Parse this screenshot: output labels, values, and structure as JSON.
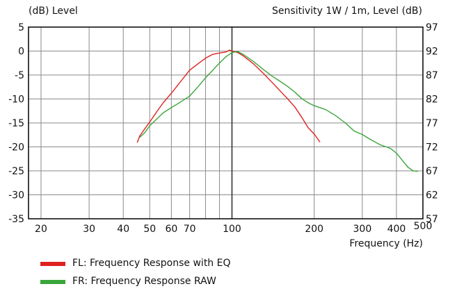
{
  "chart_data": {
    "type": "line",
    "title_left": "(dB)  Level",
    "title_right": "Sensitivity 1W / 1m, Level  (dB)",
    "xlabel": "Frequency  (Hz)",
    "x_scale": "log",
    "xlim": [
      18,
      500
    ],
    "ylim": [
      -35,
      5
    ],
    "ylim_right": [
      57,
      97
    ],
    "x_ticks": [
      20,
      30,
      40,
      50,
      60,
      70,
      100,
      200,
      300,
      400,
      500
    ],
    "x_tick_labels": [
      "20",
      "30",
      "40",
      "50",
      "60",
      "70",
      "100",
      "200",
      "300",
      "400",
      "500"
    ],
    "x_grid": [
      20,
      30,
      40,
      50,
      60,
      70,
      80,
      90,
      100,
      200,
      300,
      400
    ],
    "y_ticks": [
      5,
      0,
      -5,
      -10,
      -15,
      -20,
      -25,
      -30,
      -35
    ],
    "y_tick_labels": [
      "5",
      "0",
      "-5",
      "-10",
      "-15",
      "-20",
      "-25",
      "-30",
      "-35"
    ],
    "y_ticks_right": [
      97,
      92,
      87,
      82,
      77,
      72,
      67,
      62,
      57
    ],
    "y_tick_labels_right": [
      "97",
      "92",
      "87",
      "82",
      "77",
      "72",
      "67",
      "62",
      "57"
    ],
    "grid": true,
    "legend_position": "bottom-left",
    "series": [
      {
        "name": "FL: Frequency Response with EQ",
        "color": "#e02020",
        "points": [
          [
            45,
            -19.1
          ],
          [
            46,
            -17.7
          ],
          [
            48,
            -16.2
          ],
          [
            50,
            -14.8
          ],
          [
            53,
            -12.7
          ],
          [
            56,
            -10.8
          ],
          [
            60,
            -8.8
          ],
          [
            65,
            -6.3
          ],
          [
            70,
            -4.0
          ],
          [
            75,
            -2.7
          ],
          [
            80,
            -1.5
          ],
          [
            85,
            -0.7
          ],
          [
            90,
            -0.4
          ],
          [
            95,
            -0.2
          ],
          [
            98,
            0.2
          ],
          [
            100,
            0.0
          ],
          [
            105,
            -0.3
          ],
          [
            110,
            -1.0
          ],
          [
            120,
            -2.7
          ],
          [
            130,
            -4.6
          ],
          [
            140,
            -6.5
          ],
          [
            150,
            -8.3
          ],
          [
            160,
            -10.0
          ],
          [
            170,
            -11.7
          ],
          [
            180,
            -13.8
          ],
          [
            190,
            -16.0
          ],
          [
            200,
            -17.3
          ],
          [
            210,
            -19.0
          ]
        ]
      },
      {
        "name": "FR: Frequency Response RAW",
        "color": "#3aa63a",
        "points": [
          [
            46,
            -18.0
          ],
          [
            48,
            -17.0
          ],
          [
            50,
            -15.6
          ],
          [
            53,
            -14.2
          ],
          [
            56,
            -12.9
          ],
          [
            60,
            -11.8
          ],
          [
            65,
            -10.6
          ],
          [
            70,
            -9.4
          ],
          [
            75,
            -7.5
          ],
          [
            80,
            -5.6
          ],
          [
            85,
            -4.0
          ],
          [
            90,
            -2.5
          ],
          [
            95,
            -1.2
          ],
          [
            100,
            -0.3
          ],
          [
            105,
            -0.1
          ],
          [
            110,
            -0.7
          ],
          [
            120,
            -2.2
          ],
          [
            130,
            -3.8
          ],
          [
            140,
            -5.2
          ],
          [
            150,
            -6.3
          ],
          [
            160,
            -7.4
          ],
          [
            170,
            -8.6
          ],
          [
            180,
            -9.9
          ],
          [
            190,
            -10.8
          ],
          [
            200,
            -11.4
          ],
          [
            220,
            -12.2
          ],
          [
            240,
            -13.5
          ],
          [
            260,
            -15.0
          ],
          [
            280,
            -16.7
          ],
          [
            300,
            -17.4
          ],
          [
            320,
            -18.4
          ],
          [
            350,
            -19.6
          ],
          [
            380,
            -20.3
          ],
          [
            400,
            -21.3
          ],
          [
            420,
            -22.8
          ],
          [
            440,
            -24.2
          ],
          [
            460,
            -25.0
          ],
          [
            480,
            -25.1
          ]
        ]
      }
    ]
  }
}
